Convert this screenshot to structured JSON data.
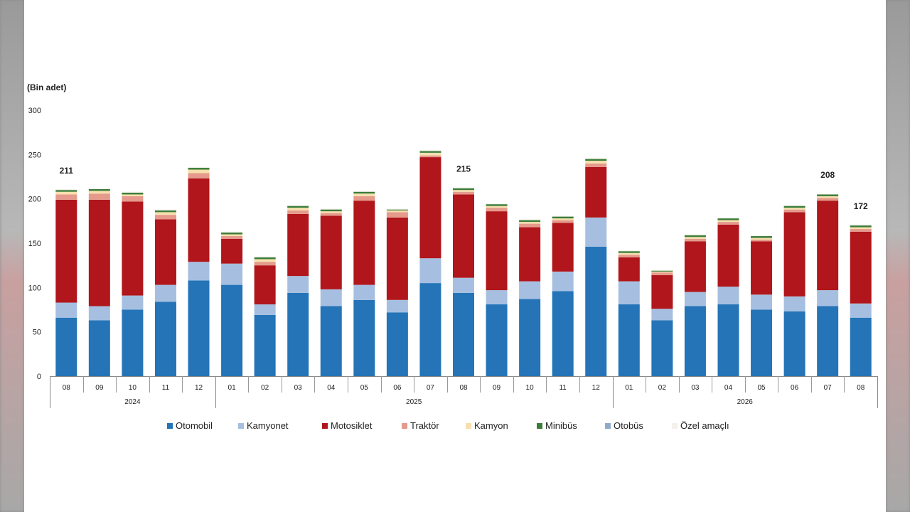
{
  "chart_data": {
    "type": "bar",
    "stacked": true,
    "unit_label": "(Bin adet)",
    "y_ticks": [
      "0",
      "50",
      "100",
      "150",
      "200",
      "250",
      "300"
    ],
    "ylim": [
      0,
      300
    ],
    "grid": false,
    "legend_position": "bottom",
    "categories": [
      "08",
      "09",
      "10",
      "11",
      "12",
      "01",
      "02",
      "03",
      "04",
      "05",
      "06",
      "07",
      "08",
      "09",
      "10",
      "11",
      "12",
      "01",
      "02",
      "03",
      "04",
      "05",
      "06",
      "07",
      "08"
    ],
    "year_groups": [
      {
        "label": "2024",
        "start": 0,
        "end": 4
      },
      {
        "label": "2025",
        "start": 5,
        "end": 16
      },
      {
        "label": "2026",
        "start": 17,
        "end": 24
      }
    ],
    "series": [
      {
        "name": "Otomobil",
        "color": "#2474b7",
        "values": [
          66,
          63,
          75,
          84,
          108,
          103,
          69,
          94,
          79,
          86,
          72,
          105,
          94,
          81,
          87,
          96,
          146,
          81,
          63,
          79,
          81,
          75,
          73,
          79,
          66
        ]
      },
      {
        "name": "Kamyonet",
        "color": "#a6bfe0",
        "values": [
          17,
          16,
          16,
          19,
          21,
          24,
          12,
          19,
          19,
          17,
          14,
          28,
          17,
          16,
          20,
          22,
          33,
          26,
          13,
          16,
          20,
          17,
          17,
          18,
          16
        ]
      },
      {
        "name": "Motosiklet",
        "color": "#b0161b",
        "values": [
          116,
          120,
          106,
          74,
          94,
          28,
          44,
          70,
          83,
          95,
          93,
          114,
          94,
          89,
          61,
          55,
          57,
          27,
          38,
          57,
          70,
          60,
          95,
          101,
          81
        ]
      },
      {
        "name": "Traktör",
        "color": "#e59a8c",
        "values": [
          6,
          7,
          6,
          5,
          6,
          3,
          4,
          4,
          3,
          5,
          6,
          2,
          3,
          4,
          4,
          3,
          4,
          3,
          3,
          3,
          3,
          2,
          3,
          3,
          3
        ]
      },
      {
        "name": "Kamyon",
        "color": "#f7dfae",
        "values": [
          3,
          3,
          2,
          3,
          4,
          2,
          3,
          3,
          2,
          3,
          2,
          3,
          2,
          2,
          2,
          2,
          3,
          2,
          1,
          2,
          2,
          2,
          2,
          2,
          2
        ]
      },
      {
        "name": "Minibüs",
        "color": "#3a7d3a",
        "values": [
          2,
          2,
          2,
          2,
          2,
          2,
          2,
          2,
          2,
          2,
          1,
          2,
          2,
          2,
          2,
          2,
          2,
          2,
          1,
          2,
          2,
          2,
          2,
          2,
          2
        ]
      },
      {
        "name": "Otobüs",
        "color": "#8faacb",
        "values": [
          0,
          0,
          0,
          0,
          0,
          0,
          0,
          0,
          0,
          0,
          0,
          0,
          0,
          0,
          0,
          0,
          0,
          0,
          0,
          0,
          0,
          0,
          0,
          0,
          0
        ]
      },
      {
        "name": "Özel amaçlı",
        "color": "#f4f1ea",
        "values": [
          1,
          1,
          1,
          1,
          1,
          1,
          1,
          1,
          1,
          1,
          1,
          1,
          1,
          1,
          1,
          1,
          1,
          1,
          1,
          1,
          1,
          1,
          1,
          1,
          1
        ]
      }
    ],
    "annotations": [
      {
        "index": 0,
        "text": "211"
      },
      {
        "index": 12,
        "text": "215"
      },
      {
        "index": 23,
        "text": "208"
      },
      {
        "index": 24,
        "text": "172"
      }
    ]
  }
}
